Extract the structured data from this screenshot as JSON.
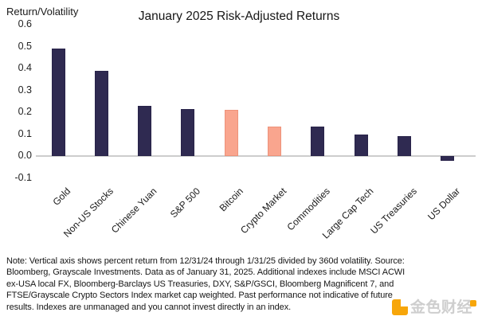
{
  "chart_data": {
    "type": "bar",
    "title": "January 2025 Risk-Adjusted Returns",
    "ylabel": "Return/Volatility",
    "xlabel": "",
    "categories": [
      "Gold",
      "Non-US Stocks",
      "Chinese Yuan",
      "S&P 500",
      "Bitcoin",
      "Crypto Market",
      "Commodities",
      "Large Cap Tech",
      "US Treasuries",
      "US Dollar"
    ],
    "values": [
      0.49,
      0.39,
      0.23,
      0.215,
      0.21,
      0.135,
      0.135,
      0.1,
      0.09,
      -0.02
    ],
    "highlight_indices": [
      4,
      5
    ],
    "colors": {
      "bar": "#2F2A51",
      "highlight": "#F9A58E",
      "axis_line": "#CDCDCD",
      "text": "#1A1A1A"
    },
    "ylim": [
      -0.1,
      0.6
    ],
    "yticks": [
      0.6,
      0.5,
      0.4,
      0.3,
      0.2,
      0.1,
      0.0,
      -0.1
    ],
    "grid": "zero-line-only",
    "legend": "none"
  },
  "note": {
    "lines": [
      "Note: Vertical axis shows percent return from 12/31/24 through 1/31/25 divided by 360d volatility. Source:",
      "Bloomberg, Grayscale Investments. Data as of January  31, 2025. Additional indexes include MSCI ACWI",
      "ex-USA local FX, Bloomberg-Barclays US Treasuries, DXY, S&P/GSCI, Bloomberg Magnificent 7, and",
      "FTSE/Grayscale Crypto Sectors Index market cap weighted. Past performance not indicative of future",
      "results. Indexes are unmanaged and you cannot invest directly in an index."
    ]
  },
  "watermark": {
    "text": "金色财经",
    "brand_color": "#F7A60A"
  }
}
